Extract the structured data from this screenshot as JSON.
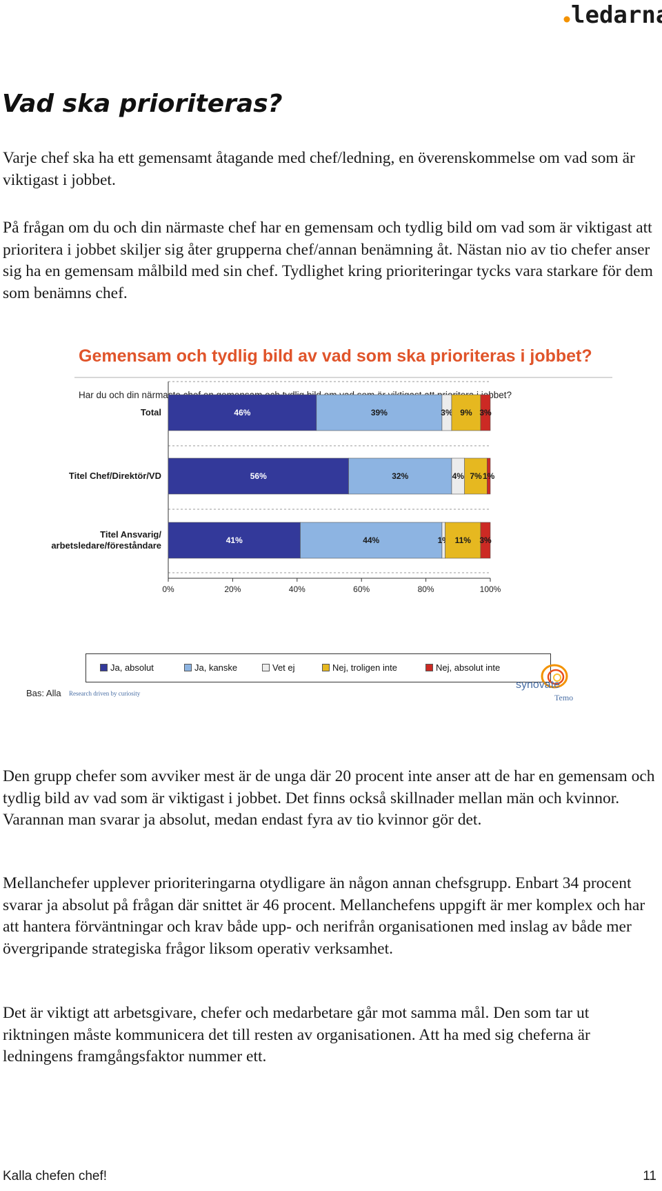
{
  "header": {
    "logo_text": "ledarna"
  },
  "page": {
    "title": "Vad ska prioriteras?",
    "paragraphs": [
      "Varje chef ska ha ett gemensamt åtagande med chef/ledning, en överenskommelse om vad som är viktigast i jobbet.",
      "På frågan om du och din närmaste chef har en gemensam och tydlig bild om vad som är viktigast att prioritera i jobbet skiljer sig åter grupperna chef/annan benämning åt. Nästan nio av tio chefer anser sig ha en gemensam målbild med sin chef. Tydlighet kring prioriteringar tycks vara starkare för dem som benämns chef.",
      "Den grupp chefer som avviker mest är de unga där 20 procent inte anser att de har en gemensam och tydlig bild av vad som är viktigast i jobbet. Det finns också skillnader mellan män och kvinnor. Varannan man svarar ja absolut, medan endast fyra av tio kvinnor gör det.",
      "Mellanchefer upplever prioriteringarna otydligare än någon annan chefsgrupp. Enbart 34 procent svarar ja absolut på frågan där snittet är 46 procent. Mellanchefens uppgift är mer komplex och har att hantera förväntningar och krav både upp- och nerifrån organisationen med inslag av både mer övergripande strategiska frågor liksom operativ verksamhet.",
      "Det är viktigt att arbetsgivare, chefer och medarbetare går mot samma mål. Den som tar ut riktningen måste kommunicera det till resten av organisationen. Att ha med sig cheferna är ledningens framgångsfaktor nummer ett."
    ]
  },
  "chart_data": {
    "type": "bar",
    "orientation": "horizontal",
    "stacked": true,
    "title": "Gemensam och tydlig bild av vad som ska prioriteras i jobbet?",
    "subtitle": "Har du och din närmaste chef en gemensam och tydlig bild om vad som är viktigast att prioritera i jobbet?",
    "categories": [
      "Total",
      "Titel Chef/Direktör/VD",
      "Titel Ansvarig/\narbetsledare/föreståndare"
    ],
    "series": [
      {
        "name": "Ja, absolut",
        "values": [
          46,
          56,
          41
        ],
        "labels": [
          "46%",
          "56%",
          "41%"
        ],
        "color": "#33399a"
      },
      {
        "name": "Ja, kanske",
        "values": [
          39,
          32,
          44
        ],
        "labels": [
          "39%",
          "32%",
          "44%"
        ],
        "color": "#8db4e2"
      },
      {
        "name": "Vet ej",
        "values": [
          3,
          4,
          1
        ],
        "labels": [
          "3%",
          "4%",
          "1%"
        ],
        "color": "#ececec"
      },
      {
        "name": "Nej, troligen inte",
        "values": [
          9,
          7,
          11
        ],
        "labels": [
          "9%",
          "7%",
          "11%"
        ],
        "color": "#e6b820"
      },
      {
        "name": "Nej, absolut inte",
        "values": [
          3,
          1,
          3
        ],
        "labels": [
          "3%",
          "1%",
          "3%"
        ],
        "color": "#cc2a24"
      }
    ],
    "xticks": [
      "0%",
      "20%",
      "40%",
      "60%",
      "80%",
      "100%"
    ],
    "xlim": [
      0,
      100
    ],
    "legend": "bottom",
    "base_label": "Bas: Alla",
    "tagline": "Research driven by curiosity",
    "brand": {
      "name": "synovate",
      "sub": "Temo"
    }
  },
  "footer": {
    "left": "Kalla chefen chef!",
    "page_number": "11"
  }
}
